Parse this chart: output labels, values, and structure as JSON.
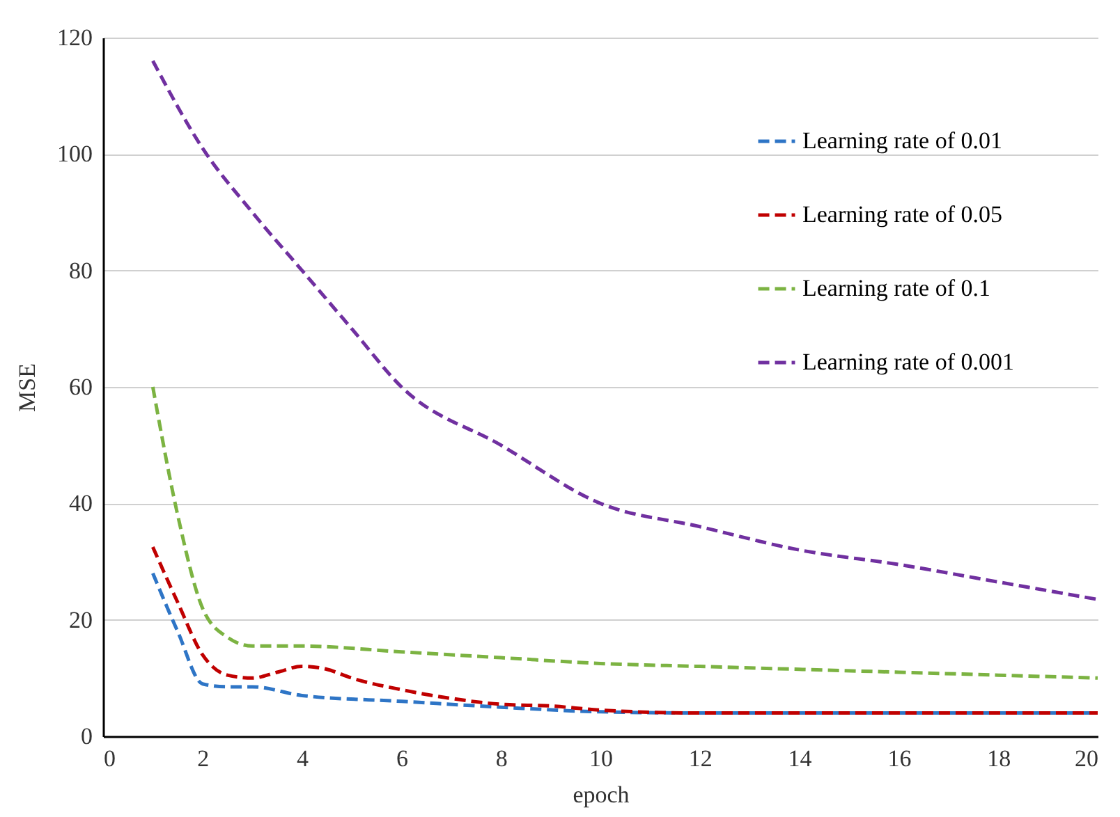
{
  "chart_data": {
    "type": "line",
    "xlabel": "epoch",
    "ylabel": "MSE",
    "xlim": [
      0,
      20
    ],
    "xticks": [
      0,
      2,
      4,
      6,
      8,
      10,
      12,
      14,
      16,
      18,
      20
    ],
    "ylim": [
      0,
      120
    ],
    "yticks": [
      0,
      20,
      40,
      60,
      80,
      100,
      120
    ],
    "grid": "y",
    "legend": "top right",
    "line_style": "dashed",
    "series": [
      {
        "name": "Learning rate of 0.01",
        "color": "#2e75c6",
        "x": [
          1,
          1.5,
          2,
          2.5,
          3,
          4,
          6,
          8,
          10,
          12,
          14,
          16,
          18,
          20
        ],
        "values": [
          28,
          18,
          9,
          8.5,
          8.5,
          7,
          6,
          5,
          4.2,
          4,
          4,
          4,
          4,
          4
        ]
      },
      {
        "name": "Learning rate of 0.05",
        "color": "#c00000",
        "x": [
          1,
          1.5,
          2,
          2.5,
          3,
          3.5,
          4,
          4.5,
          5,
          6,
          7,
          8,
          9,
          10,
          12,
          14,
          16,
          18,
          20
        ],
        "values": [
          32.5,
          23,
          14,
          10.5,
          10,
          11,
          12,
          11.5,
          10,
          8,
          6.5,
          5.5,
          5.2,
          4.5,
          4,
          4,
          4,
          4,
          4
        ]
      },
      {
        "name": "Learning rate of 0.1",
        "color": "#7cb342",
        "x": [
          1,
          1.5,
          2,
          2.5,
          3,
          4,
          6,
          8,
          10,
          12,
          14,
          16,
          18,
          20
        ],
        "values": [
          60,
          38,
          22,
          17,
          15.5,
          15.5,
          14.5,
          13.5,
          12.5,
          12,
          11.5,
          11,
          10.5,
          10
        ]
      },
      {
        "name": "Learning rate of 0.001",
        "color": "#7030a0",
        "x": [
          1,
          2,
          3,
          4,
          5,
          6,
          8,
          10,
          12,
          14,
          16,
          18,
          20
        ],
        "values": [
          116,
          101,
          90,
          80,
          70,
          60,
          50,
          40,
          36,
          32,
          29.5,
          26.5,
          23.5
        ]
      }
    ]
  }
}
